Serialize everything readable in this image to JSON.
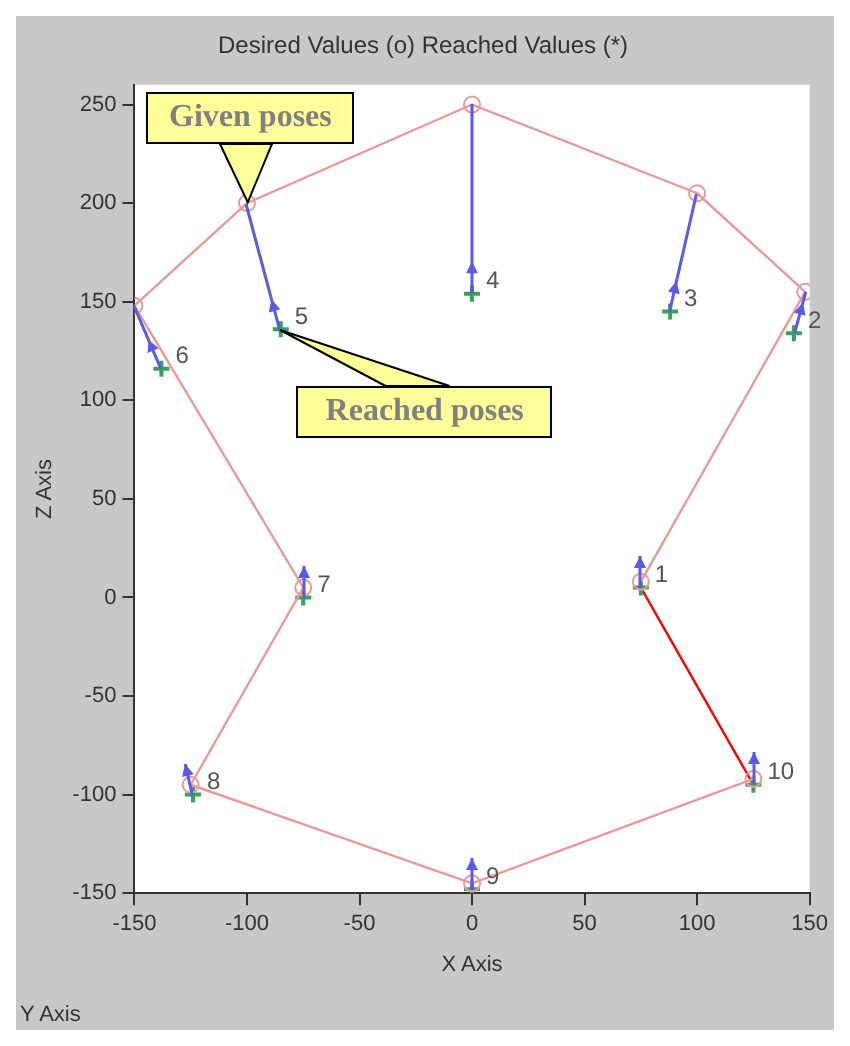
{
  "chart_data": {
    "type": "scatter",
    "title": "Desired Values (o) Reached Values (*)",
    "xlabel": "X Axis",
    "ylabel": "Z Axis",
    "annotations": [
      {
        "text": "Given poses",
        "x": -100,
        "y": 200
      },
      {
        "text": "Reached poses",
        "x": -85,
        "y": 136
      },
      "Y Axis",
      {
        "text": "1",
        "x": 75,
        "y": 5
      },
      {
        "text": "2",
        "x": 143,
        "y": 134
      },
      {
        "text": "3",
        "x": 88,
        "y": 145
      },
      {
        "text": "4",
        "x": 0,
        "y": 154
      },
      {
        "text": "5",
        "x": -85,
        "y": 136
      },
      {
        "text": "6",
        "x": -138,
        "y": 116
      },
      {
        "text": "7",
        "x": -75,
        "y": 0
      },
      {
        "text": "8",
        "x": -124,
        "y": -100
      },
      {
        "text": "9",
        "x": 0,
        "y": -148
      },
      {
        "text": "10",
        "x": 125,
        "y": -95
      }
    ],
    "series": [
      {
        "type": "line",
        "color": "#e89a9a",
        "marker": "circle",
        "x": [
          75,
          148,
          100,
          0,
          -100,
          -150,
          -75,
          -125,
          0,
          125
        ],
        "values": [
          8,
          155,
          205,
          250,
          200,
          148,
          5,
          -95,
          -145,
          -92
        ]
      },
      {
        "type": "scatter",
        "color": "#3aa05a",
        "marker": "cross",
        "x": [
          75,
          143,
          88,
          0,
          -85,
          -138,
          -75,
          -124,
          0,
          125
        ],
        "values": [
          5,
          134,
          145,
          154,
          136,
          116,
          0,
          -100,
          -148,
          -95
        ]
      },
      {
        "type": "line",
        "color": "#ff0000",
        "x": [
          125,
          75
        ],
        "values": [
          -95,
          5
        ]
      }
    ],
    "xlim": [
      -150,
      150
    ],
    "ylim": [
      -150,
      260
    ],
    "xticks": [
      -150,
      -100,
      -50,
      0,
      50,
      100,
      150
    ],
    "yticks": [
      -150,
      -100,
      -50,
      0,
      50,
      100,
      150,
      200,
      250
    ],
    "grid": false,
    "legend": false
  }
}
